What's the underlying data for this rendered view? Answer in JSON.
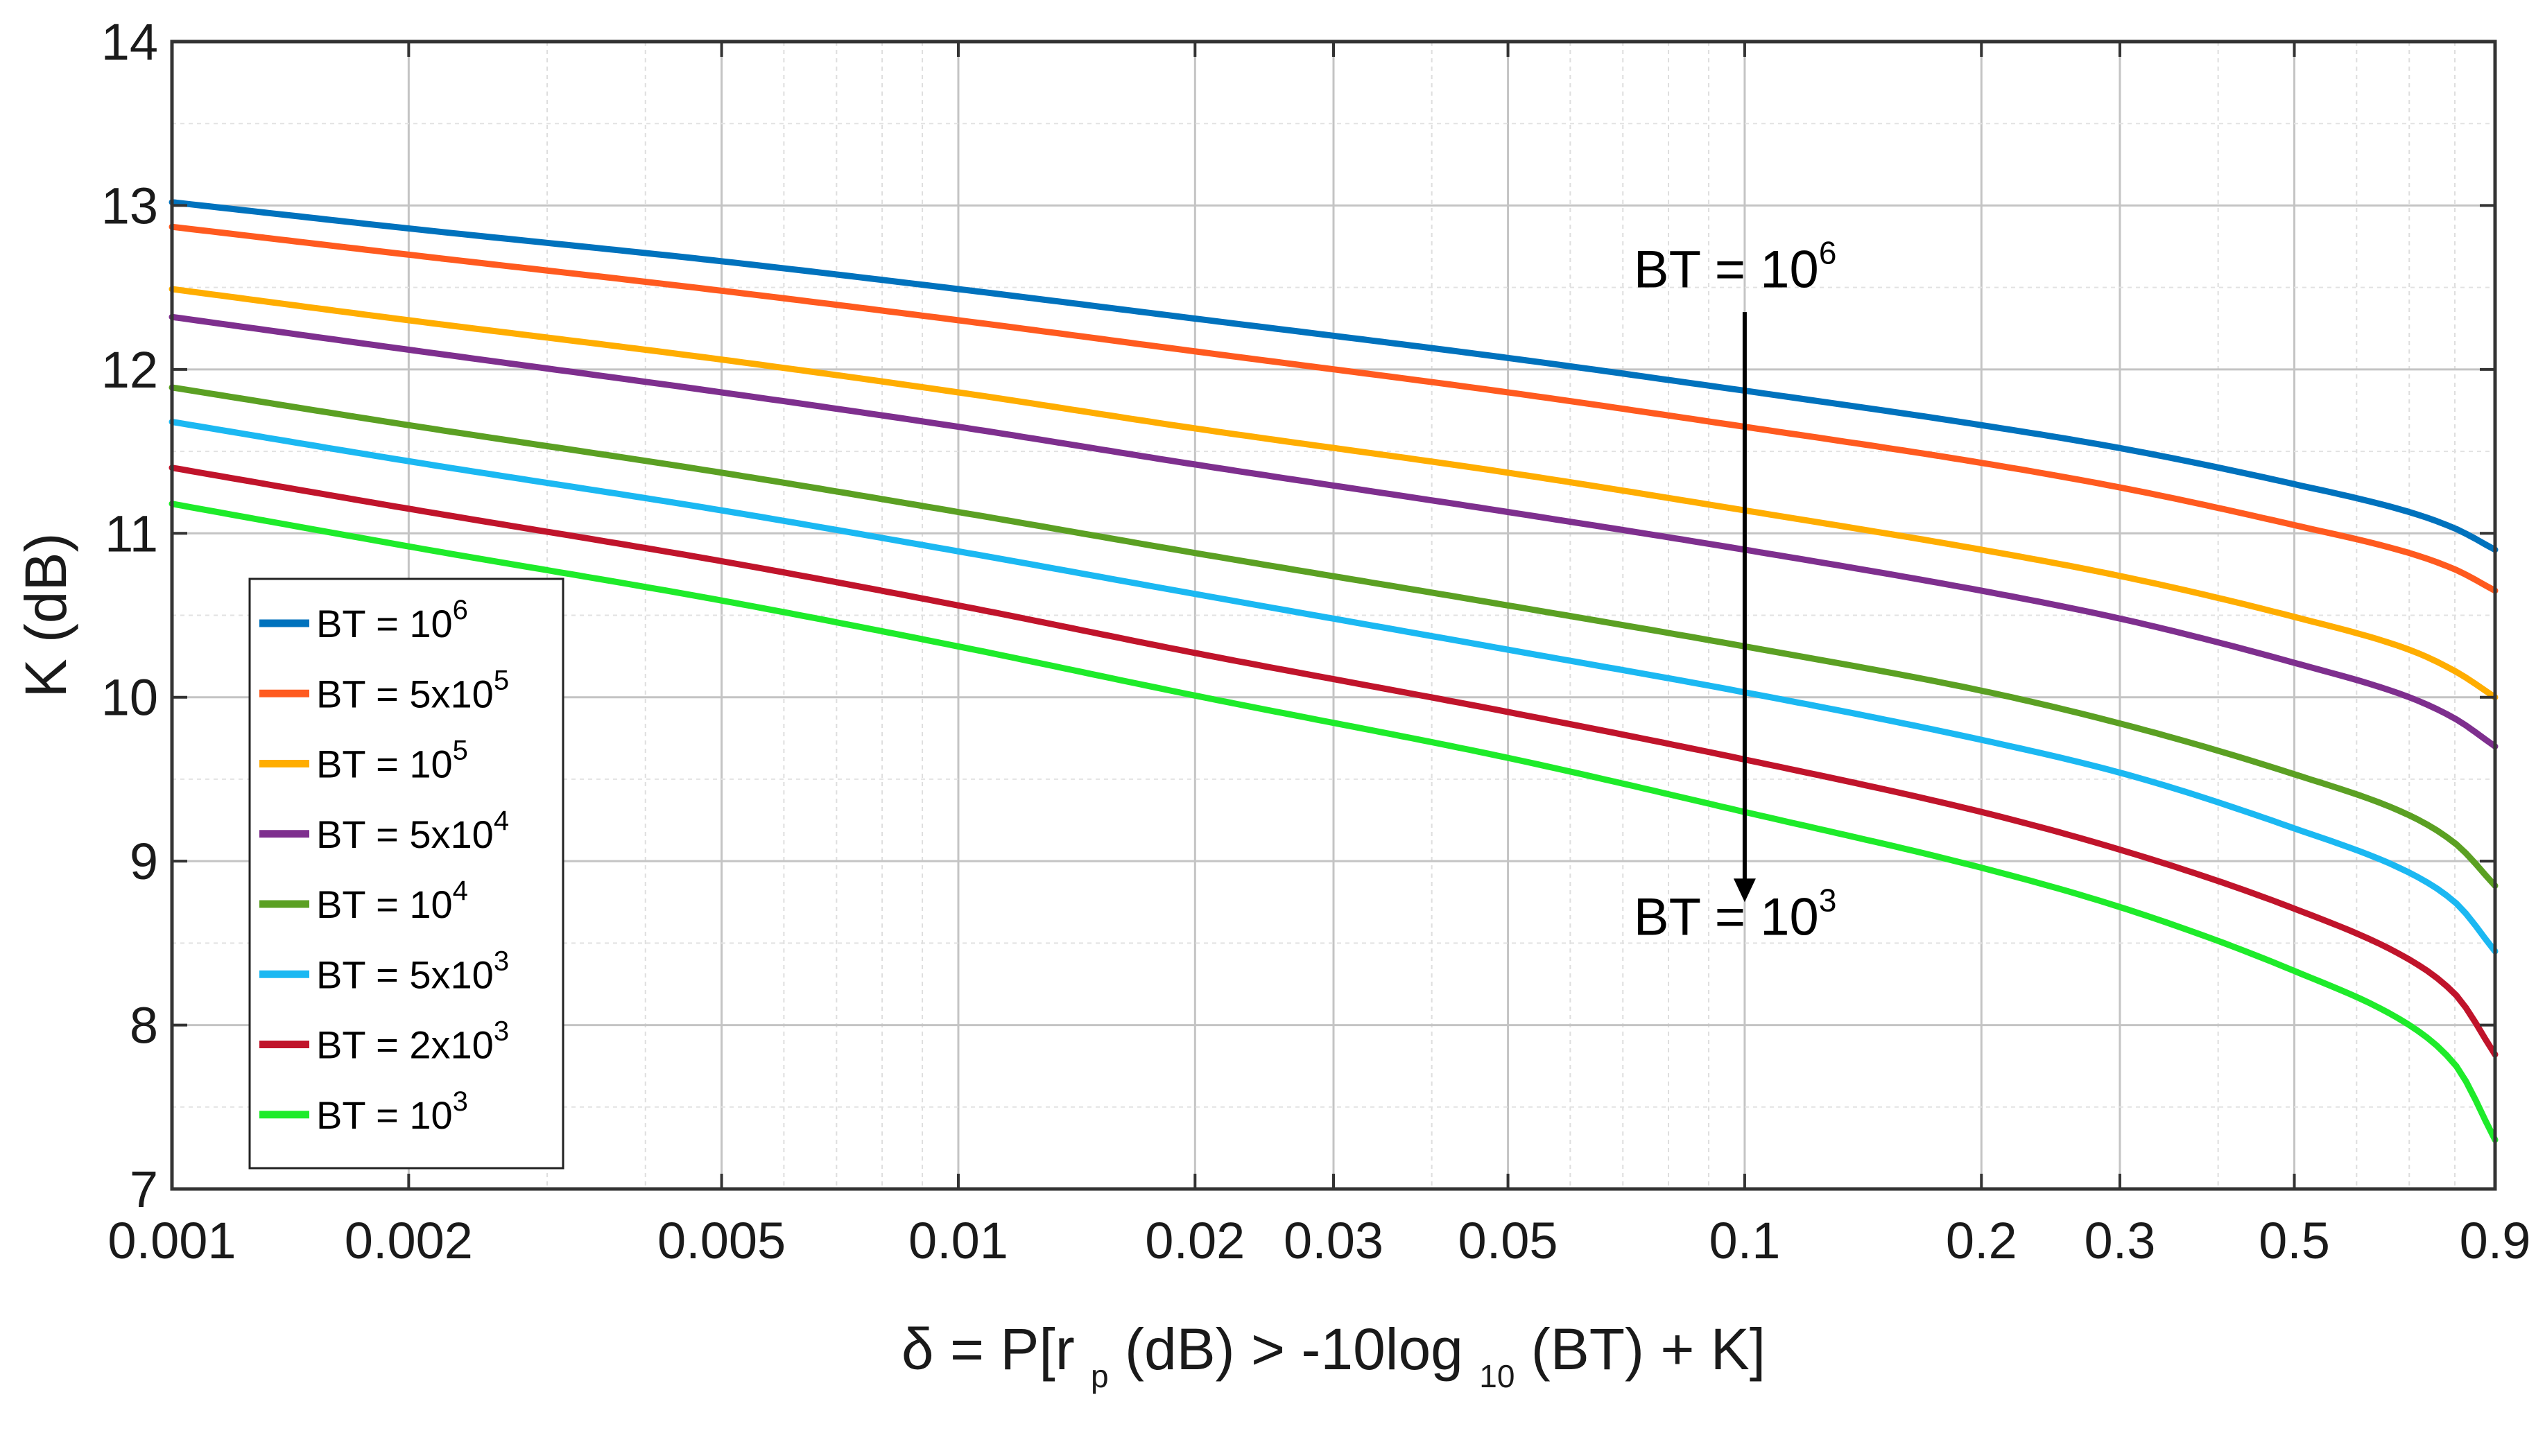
{
  "chart_data": {
    "type": "line",
    "xscale": "log",
    "xlim": [
      0.001,
      0.9
    ],
    "ylim": [
      7,
      14
    ],
    "grid": true,
    "xlabel": {
      "prefix": "δ = P[r",
      "sub1": "p",
      "mid": "(dB) > -10log",
      "sub2": "10",
      "suffix": "(BT) + K]"
    },
    "ylabel": "K (dB)",
    "xticks": [
      {
        "value": 0.001,
        "label": "0.001"
      },
      {
        "value": 0.002,
        "label": "0.002"
      },
      {
        "value": 0.005,
        "label": "0.005"
      },
      {
        "value": 0.01,
        "label": "0.01"
      },
      {
        "value": 0.02,
        "label": "0.02"
      },
      {
        "value": 0.03,
        "label": "0.03"
      },
      {
        "value": 0.05,
        "label": "0.05"
      },
      {
        "value": 0.1,
        "label": "0.1"
      },
      {
        "value": 0.2,
        "label": "0.2"
      },
      {
        "value": 0.3,
        "label": "0.3"
      },
      {
        "value": 0.5,
        "label": "0.5"
      },
      {
        "value": 0.9,
        "label": "0.9"
      }
    ],
    "yticks": [
      {
        "value": 7,
        "label": "7"
      },
      {
        "value": 8,
        "label": "8"
      },
      {
        "value": 9,
        "label": "9"
      },
      {
        "value": 10,
        "label": "10"
      },
      {
        "value": 11,
        "label": "11"
      },
      {
        "value": 12,
        "label": "12"
      },
      {
        "value": 13,
        "label": "13"
      },
      {
        "value": 14,
        "label": "14"
      }
    ],
    "x": [
      0.001,
      0.002,
      0.005,
      0.01,
      0.02,
      0.05,
      0.1,
      0.2,
      0.3,
      0.5,
      0.7,
      0.8,
      0.9
    ],
    "series": [
      {
        "name": "BT = 10^6",
        "label_base": "BT = 10",
        "label_exp": "6",
        "color": "#0072BD",
        "values": [
          13.02,
          12.86,
          12.66,
          12.49,
          12.31,
          12.07,
          11.87,
          11.66,
          11.52,
          11.3,
          11.13,
          11.03,
          10.9
        ]
      },
      {
        "name": "BT = 5x10^5",
        "label_base": "BT = 5x10",
        "label_exp": "5",
        "color": "#FF5A1F",
        "values": [
          12.87,
          12.7,
          12.48,
          12.3,
          12.11,
          11.86,
          11.65,
          11.43,
          11.28,
          11.05,
          10.88,
          10.78,
          10.65
        ]
      },
      {
        "name": "BT = 10^5",
        "label_base": "BT = 10",
        "label_exp": "5",
        "color": "#FFAD00",
        "values": [
          12.49,
          12.3,
          12.06,
          11.86,
          11.64,
          11.37,
          11.14,
          10.9,
          10.74,
          10.49,
          10.29,
          10.16,
          10.0
        ]
      },
      {
        "name": "BT = 5x10^4",
        "label_base": "BT = 5x10",
        "label_exp": "4",
        "color": "#7E2F8E",
        "values": [
          12.32,
          12.12,
          11.86,
          11.65,
          11.42,
          11.13,
          10.9,
          10.65,
          10.48,
          10.21,
          10.0,
          9.87,
          9.7
        ]
      },
      {
        "name": "BT = 10^4",
        "label_base": "BT = 10",
        "label_exp": "4",
        "color": "#5BA023",
        "values": [
          11.89,
          11.66,
          11.37,
          11.13,
          10.88,
          10.56,
          10.31,
          10.04,
          9.84,
          9.53,
          9.28,
          9.11,
          8.85
        ]
      },
      {
        "name": "BT = 5x10^3",
        "label_base": "BT = 5x10",
        "label_exp": "3",
        "color": "#1BB8F2",
        "values": [
          11.68,
          11.44,
          11.14,
          10.89,
          10.63,
          10.29,
          10.03,
          9.74,
          9.54,
          9.2,
          8.93,
          8.75,
          8.45
        ]
      },
      {
        "name": "BT = 2x10^3",
        "label_base": "BT = 2x10",
        "label_exp": "3",
        "color": "#C0142B",
        "values": [
          11.4,
          11.15,
          10.83,
          10.56,
          10.27,
          9.91,
          9.62,
          9.3,
          9.07,
          8.71,
          8.4,
          8.19,
          7.82
        ]
      },
      {
        "name": "BT = 10^3",
        "label_base": "BT = 10",
        "label_exp": "3",
        "color": "#1EEB2A",
        "values": [
          11.18,
          10.92,
          10.59,
          10.31,
          10.01,
          9.63,
          9.3,
          8.96,
          8.72,
          8.33,
          8.0,
          7.76,
          7.3
        ]
      }
    ],
    "annotations": [
      {
        "name": "top",
        "base": "BT = 10",
        "exp": "6",
        "x": 0.1,
        "y": 12.5
      },
      {
        "name": "bottom",
        "base": "BT = 10",
        "exp": "3",
        "x": 0.1,
        "y": 8.55
      }
    ],
    "arrow": {
      "x": 0.1,
      "y_from": 12.35,
      "y_to": 8.75
    },
    "legend_position": "lower-left"
  }
}
